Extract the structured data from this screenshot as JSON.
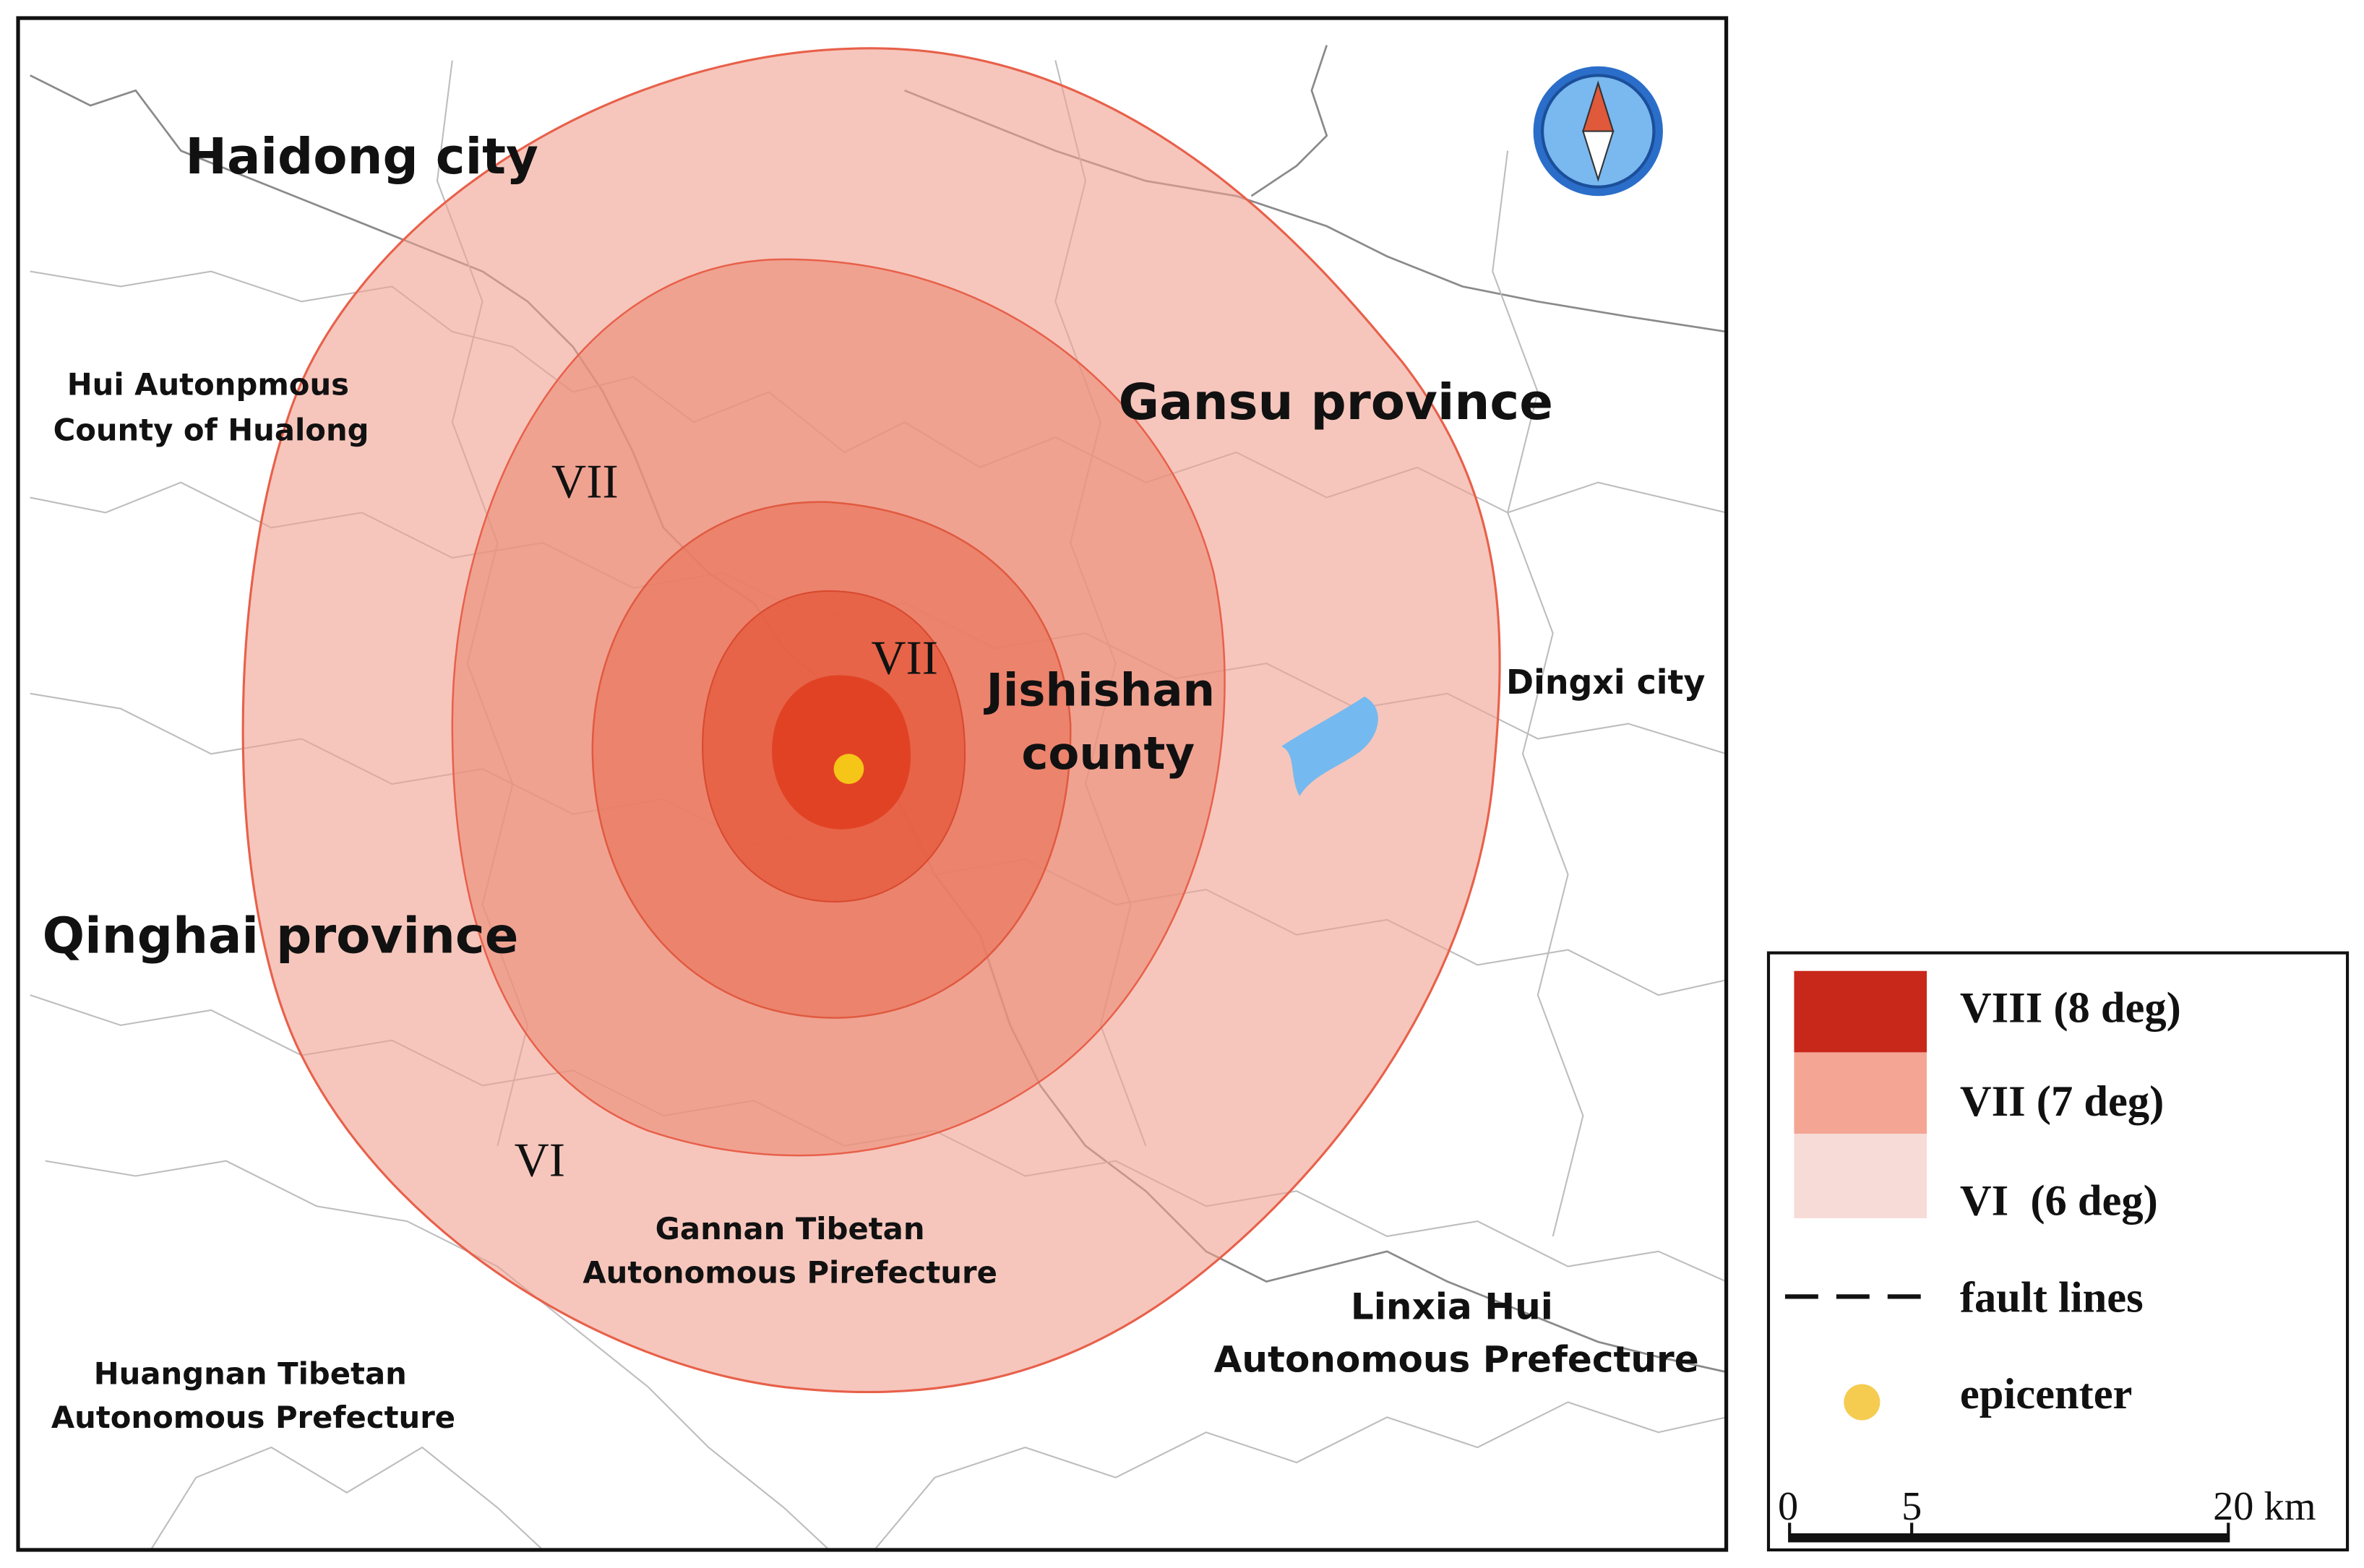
{
  "map": {
    "labels": {
      "haidong": "Haidong city",
      "hualong": [
        "Hui Autonpmous",
        "County of Hualong"
      ],
      "gansu": "Gansu province",
      "qinghai": "Qinghai province",
      "jishishan": [
        "Jishishan",
        "county"
      ],
      "dingxi": "Dingxi city",
      "gannan": [
        "Gannan Tibetan",
        "Autonomous Pirefecture"
      ],
      "linxia": [
        "Linxia Hui",
        "Autonomous Prefecture"
      ],
      "huangnan": [
        "Huangnan Tibetan",
        "Autonomous Prefecture"
      ]
    },
    "intensity_labels": [
      "VII",
      "VII",
      "VI"
    ]
  },
  "legend": {
    "items": [
      "VIII (8 deg)",
      "VII (7 deg)",
      "VI  (6 deg)",
      "fault lines",
      "epicenter"
    ]
  },
  "scale_bar": {
    "ticks": [
      "0",
      "5",
      "20 km"
    ]
  }
}
